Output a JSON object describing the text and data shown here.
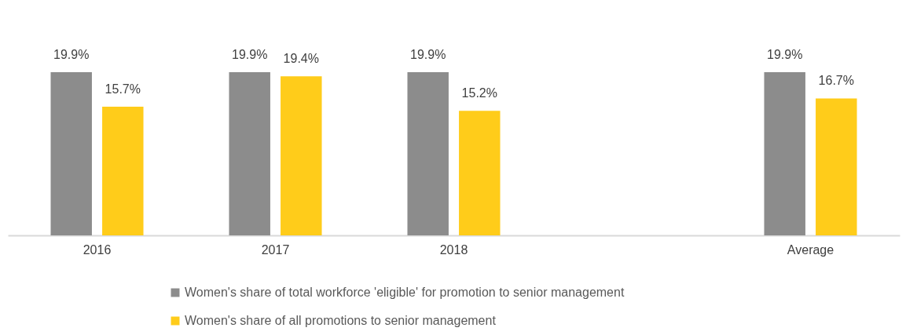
{
  "chart_data": {
    "type": "bar",
    "categories": [
      "2016",
      "2017",
      "2018",
      null,
      "Average"
    ],
    "series": [
      {
        "name": "Women's share of total workforce 'eligible' for promotion to senior management",
        "color": "#8c8c8c",
        "values": [
          19.9,
          19.9,
          19.9,
          null,
          19.9
        ],
        "value_labels": [
          "19.9%",
          "19.9%",
          "19.9%",
          null,
          "19.9%"
        ]
      },
      {
        "name": "Women's share of all promotions to senior management",
        "color": "#ffcc1a",
        "values": [
          15.7,
          19.4,
          15.2,
          null,
          16.7
        ],
        "value_labels": [
          "15.7%",
          "19.4%",
          "15.2%",
          null,
          "16.7%"
        ]
      }
    ],
    "legend": "bottom"
  }
}
